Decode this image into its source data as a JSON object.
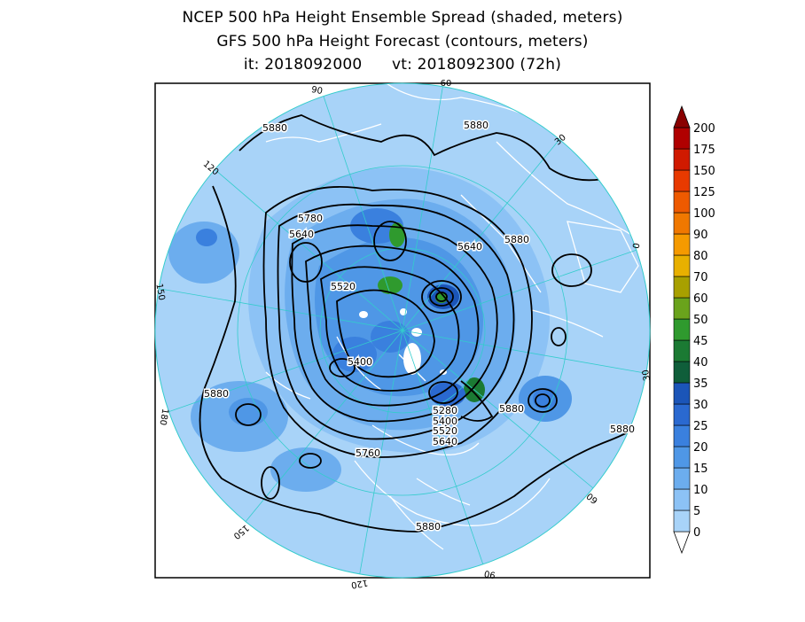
{
  "titles": {
    "line1": "NCEP 500 hPa Height Ensemble Spread (shaded, meters)",
    "line2": "GFS 500 hPa Height Forecast (contours, meters)",
    "line3": "it: 2018092000      vt: 2018092300 (72h)"
  },
  "colorbar": {
    "levels": [
      "0",
      "5",
      "10",
      "15",
      "20",
      "25",
      "30",
      "35",
      "40",
      "45",
      "50",
      "60",
      "70",
      "80",
      "90",
      "100",
      "125",
      "150",
      "175",
      "200"
    ],
    "colors": [
      "#a8d3f8",
      "#8cc2f5",
      "#6cadee",
      "#4f97e6",
      "#3a80de",
      "#2a69d0",
      "#1b55b8",
      "#0f5e3a",
      "#1b7a33",
      "#2f9a2e",
      "#6aa31c",
      "#a8a000",
      "#e8b000",
      "#f59a00",
      "#f07800",
      "#ee5a00",
      "#e83a00",
      "#d01a00",
      "#b00000",
      "#8a0000"
    ]
  },
  "contour_labels": [
    {
      "text": "5880",
      "key": "a"
    },
    {
      "text": "5880",
      "key": "b"
    },
    {
      "text": "5780",
      "key": "c"
    },
    {
      "text": "5640",
      "key": "d"
    },
    {
      "text": "5640",
      "key": "e"
    },
    {
      "text": "5880",
      "key": "f"
    },
    {
      "text": "5520",
      "key": "g"
    },
    {
      "text": "5400",
      "key": "h"
    },
    {
      "text": "5880",
      "key": "i"
    },
    {
      "text": "5280",
      "key": "j"
    },
    {
      "text": "5400",
      "key": "k"
    },
    {
      "text": "5520",
      "key": "l"
    },
    {
      "text": "5640",
      "key": "m"
    },
    {
      "text": "5880",
      "key": "n"
    },
    {
      "text": "5880",
      "key": "o"
    },
    {
      "text": "5760",
      "key": "p"
    },
    {
      "text": "5880",
      "key": "q"
    }
  ],
  "longitude_labels": [
    "60",
    "30",
    "0",
    "30",
    "60",
    "90",
    "120",
    "150",
    "180",
    "150",
    "120",
    "90"
  ]
}
